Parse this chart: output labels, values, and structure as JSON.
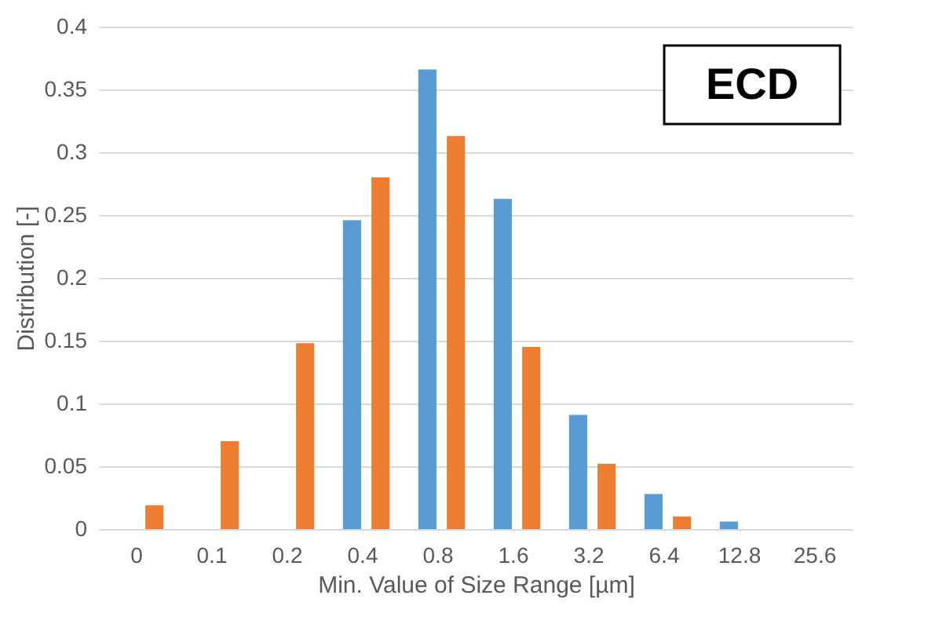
{
  "chart_data": {
    "type": "bar",
    "xlabel": "Min. Value of Size Range [µm]",
    "ylabel": "Distribution [-]",
    "annotations": [
      "ECD"
    ],
    "categories": [
      "0",
      "0.1",
      "0.2",
      "0.4",
      "0.8",
      "1.6",
      "3.2",
      "6.4",
      "12.8",
      "25.6"
    ],
    "series": [
      {
        "color": "#5b9bd5",
        "values": [
          0,
          0,
          0,
          0.246,
          0.366,
          0.263,
          0.091,
          0.028,
          0.006,
          0
        ]
      },
      {
        "color": "#ed7d31",
        "values": [
          0.019,
          0.07,
          0.148,
          0.28,
          0.313,
          0.145,
          0.052,
          0.01,
          0,
          0
        ]
      }
    ],
    "ylim": [
      0,
      0.4
    ],
    "yticks": [
      0,
      0.05,
      0.1,
      0.15,
      0.2,
      0.25,
      0.3,
      0.35,
      0.4
    ],
    "grid": "y",
    "legend": false
  }
}
